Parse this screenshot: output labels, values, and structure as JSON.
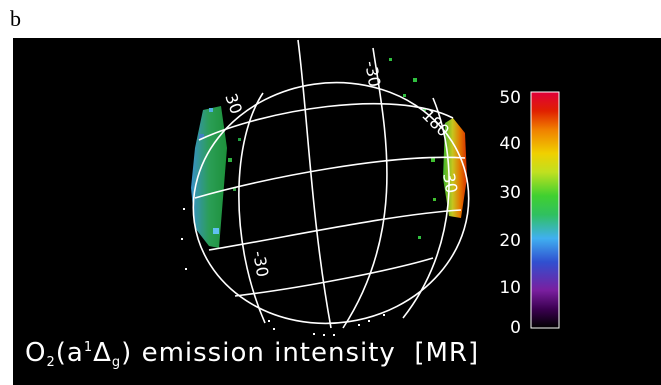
{
  "panel_letter": "b",
  "caption": {
    "prefix": "O",
    "sub1": "2",
    "paren_open": "(a",
    "sup1": "1",
    "delta": "Δ",
    "sub2": "g",
    "rest": ") emission intensity  [MR]"
  },
  "colorbar": {
    "ticks": [
      "50",
      "40",
      "30",
      "20",
      "10",
      "0"
    ],
    "colors": [
      "#000000",
      "#3a0050",
      "#7a1fa0",
      "#3050d0",
      "#40b0f0",
      "#30c060",
      "#40d030",
      "#c0e020",
      "#f0d000",
      "#f08000",
      "#e02000",
      "#e0003a"
    ]
  },
  "grid_labels": {
    "lon_top": "-30",
    "lon_right": "180",
    "lat_upper_left": "30",
    "lat_lower": "-30",
    "lat_right": "30"
  }
}
